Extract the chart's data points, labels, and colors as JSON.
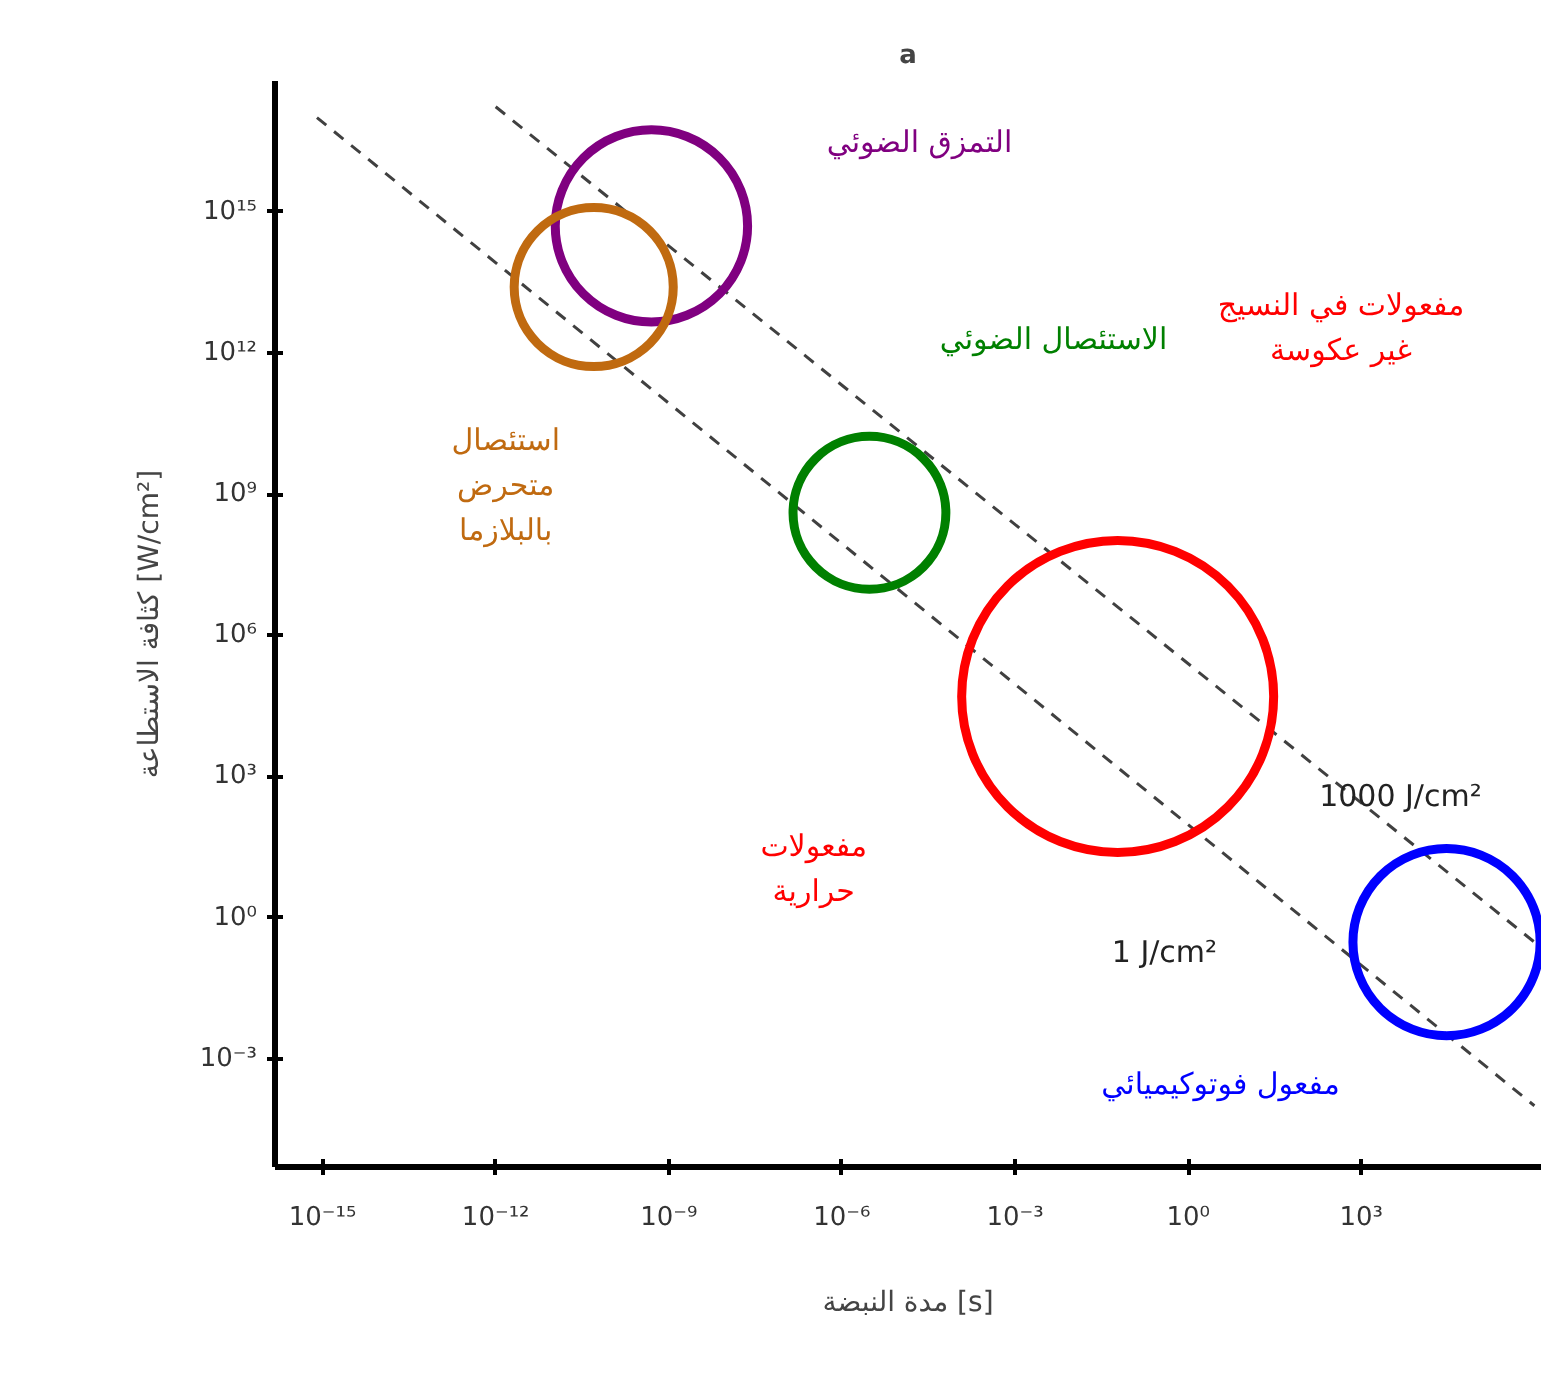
{
  "chart_data": {
    "type": "bubble",
    "title": "a",
    "xlabel": "مدة النبضة [s]",
    "ylabel": "كثافة الاستطاعة [W/cm²]",
    "log": "xy",
    "grid": false,
    "marker": "circle",
    "xlim": [
      1.5e-16,
      1300000.0
    ],
    "ylim": [
      5e-06,
      6e+17
    ],
    "xticks": [
      {
        "value": 1e-15,
        "label": "10⁻¹⁵"
      },
      {
        "value": 1e-12,
        "label": "10⁻¹²"
      },
      {
        "value": 1e-09,
        "label": "10⁻⁹"
      },
      {
        "value": 1e-06,
        "label": "10⁻⁶"
      },
      {
        "value": 0.001,
        "label": "10⁻³"
      },
      {
        "value": 1,
        "label": "10⁰"
      },
      {
        "value": 1000,
        "label": "10³"
      }
    ],
    "yticks": [
      {
        "value": 0.001,
        "label": "10⁻³"
      },
      {
        "value": 1,
        "label": "10⁰"
      },
      {
        "value": 1000,
        "label": "10³"
      },
      {
        "value": 1000000.0,
        "label": "10⁶"
      },
      {
        "value": 1000000000.0,
        "label": "10⁹"
      },
      {
        "value": 1000000000000.0,
        "label": "10¹²"
      },
      {
        "value": 1000000000000000.0,
        "label": "10¹⁵"
      }
    ],
    "series": [
      {
        "type": "line",
        "name": "1000 J/cm²",
        "color": "#404040",
        "line_style": "dashed",
        "marker": "none",
        "x": [
          1e-12,
          1000000.0
        ],
        "values": [
          1.7e+17,
          0.3
        ]
      },
      {
        "type": "line",
        "name": "1 J/cm²",
        "color": "#404040",
        "line_style": "dashed",
        "marker": "none",
        "x": [
          8e-16,
          1000000.0
        ],
        "values": [
          1e+17,
          0.0001
        ]
      },
      {
        "name": "التمزق الضوئي",
        "color": "#800080",
        "x": [
          5e-10
        ],
        "values": [
          500000000000000.0
        ],
        "sizes": [
          0.38
        ]
      },
      {
        "name": "استئصال\nمتحرض\nبالبلازما",
        "color": "#c06a10",
        "x": [
          5e-11
        ],
        "values": [
          25000000000000.0
        ],
        "sizes": [
          0.26
        ]
      },
      {
        "name": "الاستئصال الضوئي",
        "color": "#008000",
        "x": [
          3e-06
        ],
        "values": [
          400000000.0
        ],
        "sizes": [
          0.24
        ]
      },
      {
        "name": "مفعولات\nحرارية",
        "color": "#ff0000",
        "x": [
          0.06
        ],
        "values": [
          50000.0
        ],
        "sizes": [
          1
        ]
      },
      {
        "name": "مفعول فوتوكيميائي",
        "color": "#0000ff",
        "x": [
          30000.0
        ],
        "values": [
          0.3
        ],
        "sizes": [
          0.36
        ]
      }
    ],
    "annotations": [
      "مفعولات في النسيج\nغير عكوسة"
    ]
  }
}
